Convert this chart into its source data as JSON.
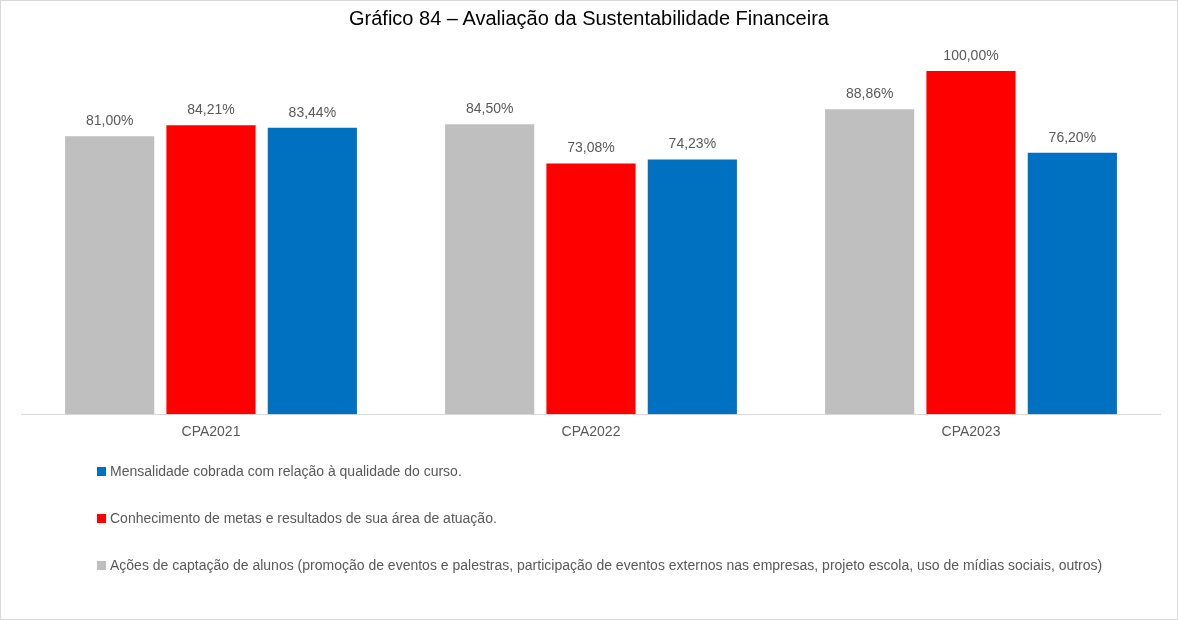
{
  "chart_data": {
    "type": "bar",
    "title": "Gráfico 84 – Avaliação da Sustentabilidade Financeira",
    "categories": [
      "CPA2021",
      "CPA2022",
      "CPA2023"
    ],
    "series": [
      {
        "name": "Ações de captação de alunos (promoção de eventos e palestras, participação de eventos externos nas empresas, projeto escola, uso de mídias sociais, outros)",
        "color": "#bfbfbf",
        "values": [
          81.0,
          84.5,
          88.86
        ],
        "value_labels": [
          "81,00%",
          "84,50%",
          "88,86%"
        ]
      },
      {
        "name": "Conhecimento de metas e resultados de sua área de atuação.",
        "color": "#ff0000",
        "values": [
          84.21,
          73.08,
          100.0
        ],
        "value_labels": [
          "84,21%",
          "73,08%",
          "100,00%"
        ]
      },
      {
        "name": "Mensalidade cobrada com relação à qualidade do curso.",
        "color": "#0070c0",
        "values": [
          83.44,
          74.23,
          76.2
        ],
        "value_labels": [
          "83,44%",
          "74,23%",
          "76,20%"
        ]
      }
    ],
    "legend": "bottom",
    "grid": false
  }
}
